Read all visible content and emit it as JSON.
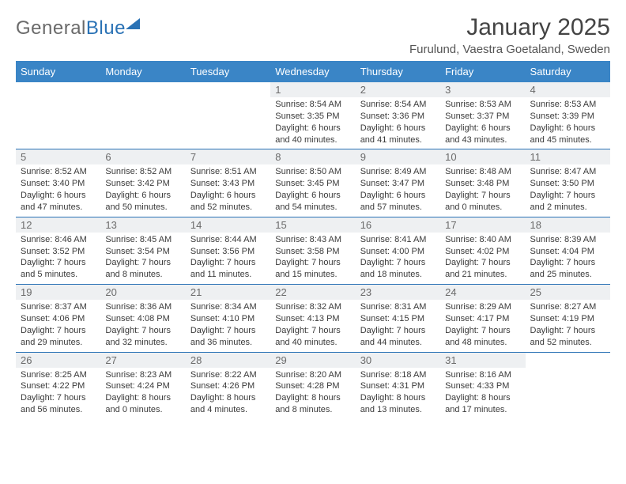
{
  "logo": {
    "word1": "General",
    "word2": "Blue"
  },
  "header": {
    "title": "January 2025",
    "subtitle": "Furulund, Vaestra Goetaland, Sweden"
  },
  "colors": {
    "header_bg": "#3a85c6",
    "row_sep": "#2a72b5",
    "daynum_bg": "#eef0f2",
    "text": "#333"
  },
  "day_labels": [
    "Sunday",
    "Monday",
    "Tuesday",
    "Wednesday",
    "Thursday",
    "Friday",
    "Saturday"
  ],
  "weeks": [
    [
      {
        "blank": true
      },
      {
        "blank": true
      },
      {
        "blank": true
      },
      {
        "n": "1",
        "sunrise": "Sunrise: 8:54 AM",
        "sunset": "Sunset: 3:35 PM",
        "day1": "Daylight: 6 hours",
        "day2": "and 40 minutes."
      },
      {
        "n": "2",
        "sunrise": "Sunrise: 8:54 AM",
        "sunset": "Sunset: 3:36 PM",
        "day1": "Daylight: 6 hours",
        "day2": "and 41 minutes."
      },
      {
        "n": "3",
        "sunrise": "Sunrise: 8:53 AM",
        "sunset": "Sunset: 3:37 PM",
        "day1": "Daylight: 6 hours",
        "day2": "and 43 minutes."
      },
      {
        "n": "4",
        "sunrise": "Sunrise: 8:53 AM",
        "sunset": "Sunset: 3:39 PM",
        "day1": "Daylight: 6 hours",
        "day2": "and 45 minutes."
      }
    ],
    [
      {
        "n": "5",
        "sunrise": "Sunrise: 8:52 AM",
        "sunset": "Sunset: 3:40 PM",
        "day1": "Daylight: 6 hours",
        "day2": "and 47 minutes."
      },
      {
        "n": "6",
        "sunrise": "Sunrise: 8:52 AM",
        "sunset": "Sunset: 3:42 PM",
        "day1": "Daylight: 6 hours",
        "day2": "and 50 minutes."
      },
      {
        "n": "7",
        "sunrise": "Sunrise: 8:51 AM",
        "sunset": "Sunset: 3:43 PM",
        "day1": "Daylight: 6 hours",
        "day2": "and 52 minutes."
      },
      {
        "n": "8",
        "sunrise": "Sunrise: 8:50 AM",
        "sunset": "Sunset: 3:45 PM",
        "day1": "Daylight: 6 hours",
        "day2": "and 54 minutes."
      },
      {
        "n": "9",
        "sunrise": "Sunrise: 8:49 AM",
        "sunset": "Sunset: 3:47 PM",
        "day1": "Daylight: 6 hours",
        "day2": "and 57 minutes."
      },
      {
        "n": "10",
        "sunrise": "Sunrise: 8:48 AM",
        "sunset": "Sunset: 3:48 PM",
        "day1": "Daylight: 7 hours",
        "day2": "and 0 minutes."
      },
      {
        "n": "11",
        "sunrise": "Sunrise: 8:47 AM",
        "sunset": "Sunset: 3:50 PM",
        "day1": "Daylight: 7 hours",
        "day2": "and 2 minutes."
      }
    ],
    [
      {
        "n": "12",
        "sunrise": "Sunrise: 8:46 AM",
        "sunset": "Sunset: 3:52 PM",
        "day1": "Daylight: 7 hours",
        "day2": "and 5 minutes."
      },
      {
        "n": "13",
        "sunrise": "Sunrise: 8:45 AM",
        "sunset": "Sunset: 3:54 PM",
        "day1": "Daylight: 7 hours",
        "day2": "and 8 minutes."
      },
      {
        "n": "14",
        "sunrise": "Sunrise: 8:44 AM",
        "sunset": "Sunset: 3:56 PM",
        "day1": "Daylight: 7 hours",
        "day2": "and 11 minutes."
      },
      {
        "n": "15",
        "sunrise": "Sunrise: 8:43 AM",
        "sunset": "Sunset: 3:58 PM",
        "day1": "Daylight: 7 hours",
        "day2": "and 15 minutes."
      },
      {
        "n": "16",
        "sunrise": "Sunrise: 8:41 AM",
        "sunset": "Sunset: 4:00 PM",
        "day1": "Daylight: 7 hours",
        "day2": "and 18 minutes."
      },
      {
        "n": "17",
        "sunrise": "Sunrise: 8:40 AM",
        "sunset": "Sunset: 4:02 PM",
        "day1": "Daylight: 7 hours",
        "day2": "and 21 minutes."
      },
      {
        "n": "18",
        "sunrise": "Sunrise: 8:39 AM",
        "sunset": "Sunset: 4:04 PM",
        "day1": "Daylight: 7 hours",
        "day2": "and 25 minutes."
      }
    ],
    [
      {
        "n": "19",
        "sunrise": "Sunrise: 8:37 AM",
        "sunset": "Sunset: 4:06 PM",
        "day1": "Daylight: 7 hours",
        "day2": "and 29 minutes."
      },
      {
        "n": "20",
        "sunrise": "Sunrise: 8:36 AM",
        "sunset": "Sunset: 4:08 PM",
        "day1": "Daylight: 7 hours",
        "day2": "and 32 minutes."
      },
      {
        "n": "21",
        "sunrise": "Sunrise: 8:34 AM",
        "sunset": "Sunset: 4:10 PM",
        "day1": "Daylight: 7 hours",
        "day2": "and 36 minutes."
      },
      {
        "n": "22",
        "sunrise": "Sunrise: 8:32 AM",
        "sunset": "Sunset: 4:13 PM",
        "day1": "Daylight: 7 hours",
        "day2": "and 40 minutes."
      },
      {
        "n": "23",
        "sunrise": "Sunrise: 8:31 AM",
        "sunset": "Sunset: 4:15 PM",
        "day1": "Daylight: 7 hours",
        "day2": "and 44 minutes."
      },
      {
        "n": "24",
        "sunrise": "Sunrise: 8:29 AM",
        "sunset": "Sunset: 4:17 PM",
        "day1": "Daylight: 7 hours",
        "day2": "and 48 minutes."
      },
      {
        "n": "25",
        "sunrise": "Sunrise: 8:27 AM",
        "sunset": "Sunset: 4:19 PM",
        "day1": "Daylight: 7 hours",
        "day2": "and 52 minutes."
      }
    ],
    [
      {
        "n": "26",
        "sunrise": "Sunrise: 8:25 AM",
        "sunset": "Sunset: 4:22 PM",
        "day1": "Daylight: 7 hours",
        "day2": "and 56 minutes."
      },
      {
        "n": "27",
        "sunrise": "Sunrise: 8:23 AM",
        "sunset": "Sunset: 4:24 PM",
        "day1": "Daylight: 8 hours",
        "day2": "and 0 minutes."
      },
      {
        "n": "28",
        "sunrise": "Sunrise: 8:22 AM",
        "sunset": "Sunset: 4:26 PM",
        "day1": "Daylight: 8 hours",
        "day2": "and 4 minutes."
      },
      {
        "n": "29",
        "sunrise": "Sunrise: 8:20 AM",
        "sunset": "Sunset: 4:28 PM",
        "day1": "Daylight: 8 hours",
        "day2": "and 8 minutes."
      },
      {
        "n": "30",
        "sunrise": "Sunrise: 8:18 AM",
        "sunset": "Sunset: 4:31 PM",
        "day1": "Daylight: 8 hours",
        "day2": "and 13 minutes."
      },
      {
        "n": "31",
        "sunrise": "Sunrise: 8:16 AM",
        "sunset": "Sunset: 4:33 PM",
        "day1": "Daylight: 8 hours",
        "day2": "and 17 minutes."
      },
      {
        "blank": true
      }
    ]
  ]
}
